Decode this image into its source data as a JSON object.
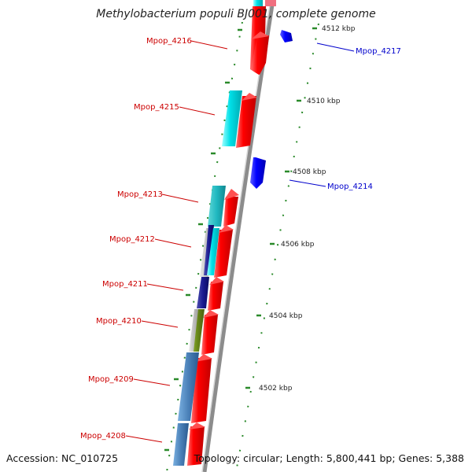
{
  "title": "Methylobacterium populi BJ001, complete genome",
  "footer": {
    "accession": "Accession: NC_010725",
    "topology": "Topology: circular; Length: 5,800,441 bp; Genes: 5,388"
  },
  "ticks": [
    "4512 kbp",
    "4510 kbp",
    "4508 kbp",
    "4506 kbp",
    "4504 kbp",
    "4502 kbp"
  ],
  "genes": [
    {
      "tag": "Mpop_4217",
      "strand": "reverse"
    },
    {
      "tag": "Mpop_4216",
      "strand": "forward"
    },
    {
      "tag": "Mpop_4215",
      "strand": "forward"
    },
    {
      "tag": "Mpop_4214",
      "strand": "reverse"
    },
    {
      "tag": "Mpop_4213",
      "strand": "forward"
    },
    {
      "tag": "Mpop_4212",
      "strand": "forward"
    },
    {
      "tag": "Mpop_4211",
      "strand": "forward"
    },
    {
      "tag": "Mpop_4210",
      "strand": "forward"
    },
    {
      "tag": "Mpop_4209",
      "strand": "forward"
    },
    {
      "tag": "Mpop_4208",
      "strand": "forward"
    }
  ],
  "colors": {
    "forward_cds": "#ee0000",
    "reverse_cds": "#0000ee",
    "forward_label": "#cc0000",
    "reverse_label": "#0000cc",
    "gc_dots": "#2a8a2a",
    "cyan_feature": "#00d8e0",
    "steel_feature": "#4a7fb5",
    "navy_feature": "#1a1a80",
    "olive_feature": "#6a8a1a",
    "backbone": "#909090"
  }
}
